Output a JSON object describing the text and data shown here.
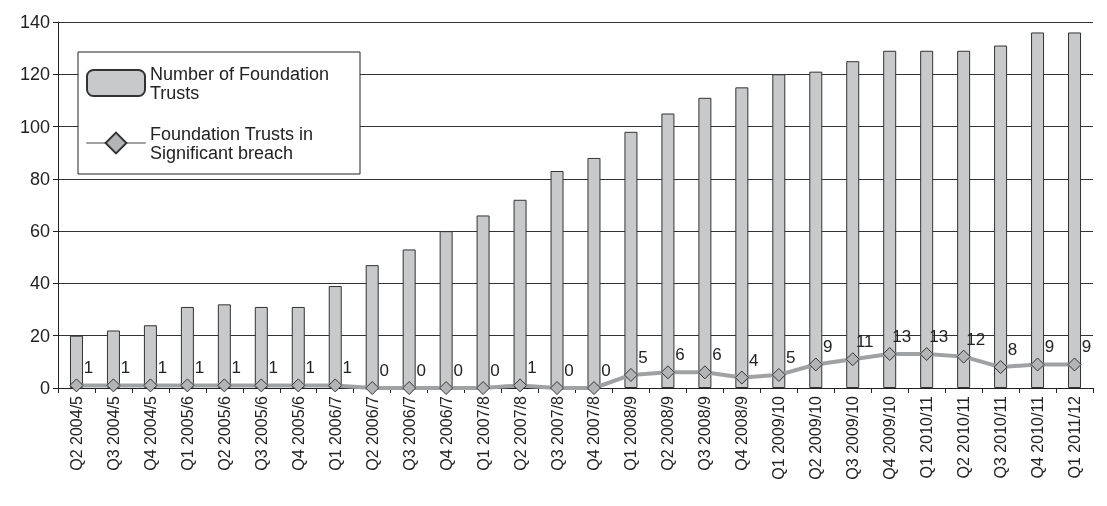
{
  "chart_data": {
    "type": "bar",
    "categories": [
      "Q2 2004/5",
      "Q3 2004/5",
      "Q4 2004/5",
      "Q1 2005/6",
      "Q2 2005/6",
      "Q3 2005/6",
      "Q4 2005/6",
      "Q1 2006/7",
      "Q2 2006/7",
      "Q3 2006/7",
      "Q4 2006/7",
      "Q1 2007/8",
      "Q2 2007/8",
      "Q3 2007/8",
      "Q4 2007/8",
      "Q1 2008/9",
      "Q2 2008/9",
      "Q3 2008/9",
      "Q4 2008/9",
      "Q1 2009/10",
      "Q2 2009/10",
      "Q3 2009/10",
      "Q4 2009/10",
      "Q1 2010/11",
      "Q2 2010/11",
      "Q3 2010/11",
      "Q4 2010/11",
      "Q1 2011/12"
    ],
    "series": [
      {
        "name": "Number of Foundation Trusts",
        "color": "#c8c9cb",
        "values": [
          20,
          22,
          24,
          31,
          32,
          31,
          31,
          39,
          47,
          53,
          60,
          66,
          72,
          83,
          88,
          98,
          105,
          111,
          115,
          120,
          121,
          125,
          129,
          129,
          129,
          131,
          136,
          136
        ]
      },
      {
        "name": "Foundation Trusts in Significant breach",
        "type": "line",
        "color": "#a0a1a3",
        "marker": "diamond",
        "values": [
          1,
          1,
          1,
          1,
          1,
          1,
          1,
          1,
          0,
          0,
          0,
          0,
          1,
          0,
          0,
          5,
          6,
          6,
          4,
          5,
          9,
          11,
          13,
          13,
          12,
          8,
          9,
          9
        ],
        "value_labels": [
          "1",
          "1",
          "1",
          "1",
          "1",
          "1",
          "1",
          "1",
          "0",
          "0",
          "0",
          "0",
          "1",
          "0",
          "0",
          "5",
          "6",
          "6",
          "4",
          "5",
          "9",
          "11",
          "13",
          "13",
          "12",
          "8",
          "9",
          "9"
        ]
      }
    ],
    "ylim": [
      0,
      140
    ],
    "yticks": [
      0,
      20,
      40,
      60,
      80,
      100,
      120,
      140
    ],
    "grid": "y",
    "legend": "top left"
  }
}
